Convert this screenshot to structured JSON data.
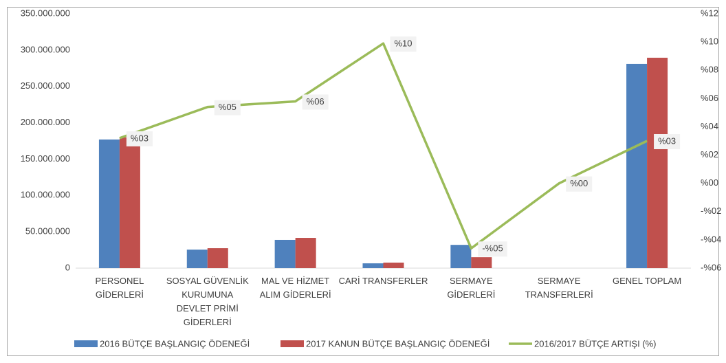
{
  "chart_data": {
    "type": "bar",
    "categories": [
      "PERSONEL\nGİDERLERİ",
      "SOSYAL GÜVENLİK\nKURUMUNA\nDEVLET PRİMİ\nGİDERLERİ",
      "MAL VE HİZMET\nALIM GİDERLERİ",
      "CARİ TRANSFERLER",
      "SERMAYE\nGİDERLERİ",
      "SERMAYE\nTRANSFERLERİ",
      "GENEL TOPLAM"
    ],
    "series": [
      {
        "name": "2016 BÜTÇE BAŞLANGIÇ ÖDENEĞİ",
        "type": "bar",
        "color": "#4f81bd",
        "values": [
          177000000,
          25500000,
          38800000,
          6600000,
          32000000,
          0,
          281000000
        ]
      },
      {
        "name": "2017 KANUN BÜTÇE BAŞLANGIÇ ÖDENEĞİ",
        "type": "bar",
        "color": "#c0504d",
        "values": [
          180000000,
          27400000,
          41600000,
          7600000,
          15000000,
          0,
          289500000
        ]
      },
      {
        "name": "2016/2017 BÜTÇE ARTIŞI (%)",
        "type": "line",
        "axis": "y2",
        "color": "#9bbb59",
        "values": [
          3.2,
          5.4,
          5.8,
          9.9,
          -4.6,
          0.0,
          3.0
        ],
        "value_labels": [
          "%03",
          "%05",
          "%06",
          "%10",
          "-%05",
          "%00",
          "%03"
        ]
      }
    ],
    "ylim": [
      0,
      350000000
    ],
    "yticks": [
      0,
      {
        "value": 50000000,
        "label": "50.000.000"
      },
      {
        "value": 100000000,
        "label": "100.000.000"
      },
      {
        "value": 150000000,
        "label": "150.000.000"
      },
      {
        "value": 200000000,
        "label": "200.000.000"
      },
      {
        "value": 250000000,
        "label": "250.000.000"
      },
      {
        "value": 300000000,
        "label": "300.000.000"
      },
      {
        "value": 350000000,
        "label": "350.000.000"
      }
    ],
    "y2lim": [
      -6,
      12
    ],
    "y2ticks": [
      {
        "value": -6,
        "label": "-%06"
      },
      {
        "value": -4,
        "label": "-%04"
      },
      {
        "value": -2,
        "label": "-%02"
      },
      {
        "value": 0,
        "label": "%00"
      },
      {
        "value": 2,
        "label": "%02"
      },
      {
        "value": 4,
        "label": "%04"
      },
      {
        "value": 6,
        "label": "%06"
      },
      {
        "value": 8,
        "label": "%08"
      },
      {
        "value": 10,
        "label": "%10"
      },
      {
        "value": 12,
        "label": "%12"
      }
    ],
    "legend": "bottom"
  }
}
